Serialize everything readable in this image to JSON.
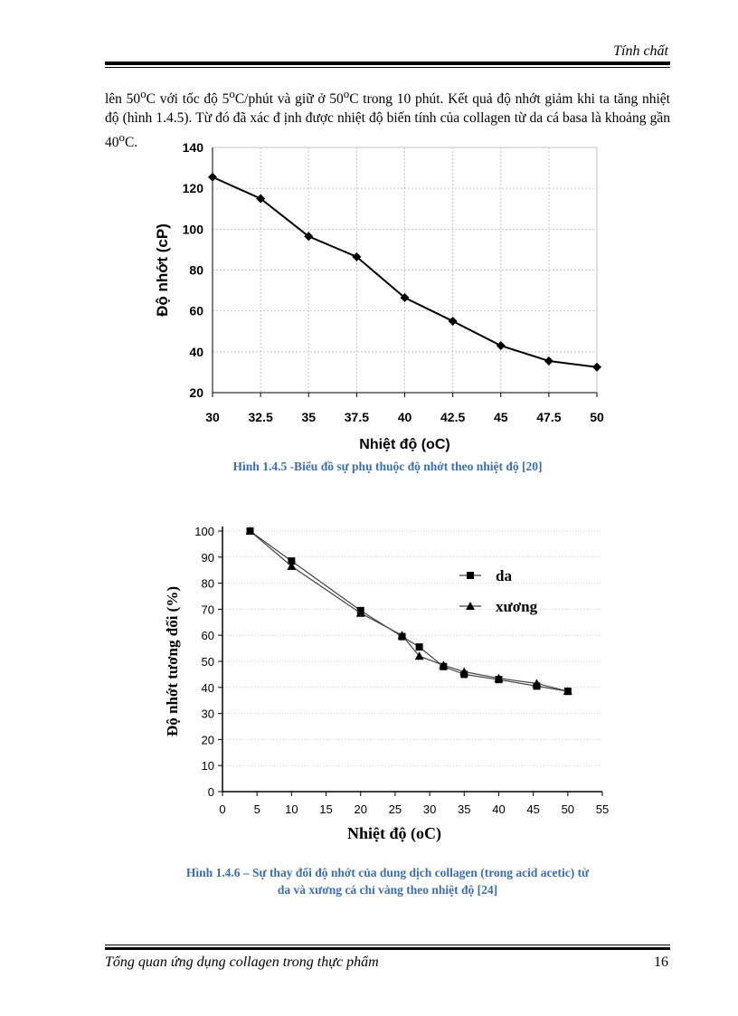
{
  "header": {
    "section_title": "Tính chất"
  },
  "body": {
    "line1": "lên 50",
    "sup1": "o",
    "line1b": "C với tốc độ 5",
    "sup2": "o",
    "line1c": "C/phút và giữ ở 50",
    "sup3": "o",
    "line1d": "C trong 10 phút. Kết quả độ nhớt giảm khi ta tăng nhiệt độ (hình 1.4.5). Từ đó đã xác đ ịnh được nhiệt độ biến tính của collagen từ da cá basa là khoảng gần 40",
    "sup4": "o",
    "line1e": "C."
  },
  "figure1": {
    "caption": "Hình 1.4.5 -Biểu đồ sự phụ thuộc độ nhớt theo nhiệt độ [20]"
  },
  "figure2": {
    "caption_line1": "Hình 1.4.6 – Sự thay đổi độ nhớt của dung dịch collagen (trong acid acetic) từ",
    "caption_line2": "da và xương cá chỉ vàng theo nhiệt độ [24]"
  },
  "chart_data": [
    {
      "type": "line",
      "title": "",
      "xlabel": "Nhiệt độ (oC)",
      "ylabel": "Độ nhớt (cP)",
      "xlim": [
        30,
        50
      ],
      "ylim": [
        20,
        140
      ],
      "xticks": [
        "30",
        "32.5",
        "35",
        "37.5",
        "40",
        "42.5",
        "45",
        "47.5",
        "50"
      ],
      "yticks": [
        "20",
        "40",
        "60",
        "80",
        "100",
        "120",
        "140"
      ],
      "grid": true,
      "series": [
        {
          "name": "Độ nhớt",
          "marker": "diamond",
          "x": [
            30,
            32.5,
            35,
            37.5,
            40,
            42.5,
            45,
            47.5,
            50
          ],
          "y": [
            125.5,
            115,
            96.5,
            86.5,
            66.5,
            55,
            43,
            35.5,
            32.5
          ]
        }
      ]
    },
    {
      "type": "line",
      "title": "",
      "xlabel": "Nhiệt độ (oC)",
      "ylabel": "Độ nhớt tương đối (%)",
      "xlim": [
        0,
        55
      ],
      "ylim": [
        0,
        100
      ],
      "xticks": [
        "0",
        "5",
        "10",
        "15",
        "20",
        "25",
        "30",
        "35",
        "40",
        "45",
        "50",
        "55"
      ],
      "yticks": [
        "0",
        "10",
        "20",
        "30",
        "40",
        "50",
        "60",
        "70",
        "80",
        "90",
        "100"
      ],
      "grid": true,
      "legend_position": "top-right",
      "series": [
        {
          "name": "da",
          "marker": "square",
          "x": [
            4,
            10,
            20,
            26,
            28.5,
            32,
            35,
            40,
            45.5,
            50
          ],
          "y": [
            100,
            88.5,
            69.5,
            59.5,
            55.5,
            48,
            45,
            43,
            40.5,
            38.5
          ]
        },
        {
          "name": "xương",
          "marker": "triangle",
          "x": [
            4,
            10,
            20,
            26,
            28.5,
            32,
            35,
            40,
            45.5,
            50
          ],
          "y": [
            100,
            86.5,
            68.5,
            60,
            52,
            48.5,
            46,
            43.5,
            41.5,
            38.5
          ]
        }
      ]
    }
  ],
  "footer": {
    "title": "Tổng quan ứng dụng collagen trong thực phẩm",
    "page_number": "16"
  }
}
